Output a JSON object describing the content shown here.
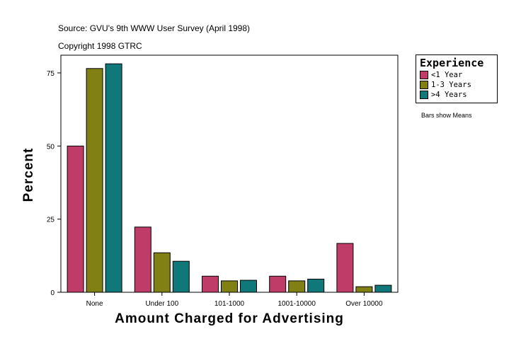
{
  "chart_data": {
    "type": "bar",
    "subtitle_lines": [
      "Source: GVU's 9th WWW User Survey (April 1998)",
      "Copyright 1998 GTRC"
    ],
    "xlabel": "Amount Charged for Advertising",
    "ylabel": "Percent",
    "categories": [
      "None",
      "Under 100",
      "101-1000",
      "1001-10000",
      "Over 10000"
    ],
    "yticks": [
      0,
      25,
      50,
      75
    ],
    "ylim": [
      0,
      81
    ],
    "grid": false,
    "legend": {
      "title": "Experience",
      "placement": "right"
    },
    "series": [
      {
        "name": "<1 Year",
        "color": "#c03c68",
        "values": [
          50.0,
          22.3,
          5.5,
          5.5,
          16.7
        ]
      },
      {
        "name": "1-3 Years",
        "color": "#808014",
        "values": [
          76.5,
          13.5,
          3.9,
          3.9,
          1.9
        ]
      },
      {
        "name": ">4 Years",
        "color": "#107878",
        "values": [
          78.1,
          10.6,
          4.1,
          4.5,
          2.4
        ]
      }
    ],
    "note": "Bars show Means"
  }
}
